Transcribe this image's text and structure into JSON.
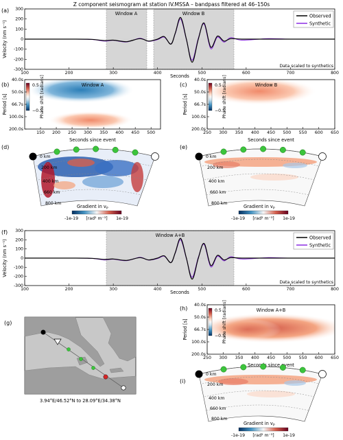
{
  "figure": {
    "top_title": "Z component seismogram at station IV.MSSA – bandpass filtered at 46–150s",
    "panel_labels": [
      "(a)",
      "(b)",
      "(c)",
      "(d)",
      "(e)",
      "(f)",
      "(g)",
      "(h)",
      "(i)"
    ],
    "legend": {
      "observed": "Observed",
      "synthetic": "Synthetic"
    },
    "scaled_note": "Data scaled to synthetics",
    "velocity_ylabel": "Velocity (nm s⁻¹)",
    "seconds_label": "Seconds",
    "seconds_since_event": "Seconds since event",
    "period_label": "Period [s]",
    "phase_shift_label": "Phase shift [radians]",
    "cbar_phase_ticks": [
      "0.5",
      "0",
      "−0.5"
    ],
    "gradient_label": "Gradient in v",
    "gradient_sub": "P",
    "gradient_units": "[rad² m⁻³]",
    "gradient_ticks": [
      "-1e-19",
      "1e-19"
    ],
    "depth_labels": [
      "0 km",
      "200 km",
      "400 km",
      "660 km",
      "800 km"
    ],
    "window_a": "Window A",
    "window_b": "Window B",
    "window_ab": "Window A+B",
    "map_caption": "3.94°E/46.52°N to 28.09°E/34.38°N",
    "colors": {
      "observed": "#000000",
      "synthetic": "#8a2be2",
      "window": "#d6d6d6",
      "station": "#3cc43c",
      "source": "#000000",
      "red": "#b2182b",
      "blue": "#2166ac"
    }
  },
  "chart_data": [
    {
      "id": "a",
      "type": "line",
      "title": "Z component seismogram at station IV.MSSA – bandpass filtered at 46–150s",
      "xlabel": "Seconds",
      "ylabel": "Velocity (nm s⁻¹)",
      "xlim": [
        100,
        800
      ],
      "ylim": [
        -300,
        300
      ],
      "xticks": [
        100,
        200,
        300,
        400,
        500,
        600,
        700,
        800
      ],
      "yticks": [
        300,
        200,
        100,
        0,
        -100,
        -200,
        -300
      ],
      "windows": [
        {
          "label": "Window A",
          "x": [
            280,
            370
          ]
        },
        {
          "label": "Window B",
          "x": [
            385,
            565
          ]
        }
      ],
      "series": [
        {
          "name": "Observed",
          "x": [
            100,
            200,
            250,
            280,
            300,
            330,
            360,
            380,
            400,
            415,
            430,
            440,
            452,
            465,
            478,
            492,
            505,
            520,
            535,
            550,
            565,
            590,
            650,
            700,
            800
          ],
          "y": [
            0,
            0,
            -2,
            -15,
            -10,
            -25,
            5,
            -20,
            0,
            25,
            -50,
            60,
            215,
            0,
            -230,
            0,
            160,
            -80,
            30,
            -20,
            5,
            0,
            0,
            0,
            0
          ]
        },
        {
          "name": "Synthetic",
          "x": [
            100,
            200,
            250,
            280,
            300,
            330,
            360,
            380,
            400,
            415,
            430,
            440,
            452,
            465,
            478,
            492,
            505,
            520,
            535,
            550,
            565,
            590,
            650,
            700,
            800
          ],
          "y": [
            0,
            0,
            -3,
            -20,
            -12,
            -28,
            8,
            -22,
            -5,
            20,
            -48,
            55,
            200,
            -5,
            -210,
            10,
            150,
            -95,
            20,
            -30,
            15,
            -10,
            5,
            0,
            0
          ]
        }
      ]
    },
    {
      "id": "b",
      "type": "heatmap",
      "title": "Window A",
      "xlabel": "Seconds since event",
      "ylabel": "Period [s]",
      "xticks": [
        150,
        200,
        250,
        300,
        350,
        400,
        450,
        500
      ],
      "yticks": [
        "40.0s",
        "50.0s",
        "66.7s",
        "100.0s",
        "200.0s"
      ],
      "colorbar": {
        "label": "Phase shift [radians]",
        "range": [
          -0.5,
          0.5
        ]
      }
    },
    {
      "id": "c",
      "type": "heatmap",
      "title": "Window B",
      "xlabel": "Seconds since event",
      "ylabel": "Period [s]",
      "xticks": [
        250,
        300,
        350,
        400,
        450,
        500,
        550,
        600,
        650
      ],
      "yticks": [
        "40.0s",
        "50.0s",
        "66.7s",
        "100.0s",
        "200.0s"
      ],
      "colorbar": {
        "label": "Phase shift [radians]",
        "range": [
          -0.5,
          0.5
        ]
      }
    },
    {
      "id": "f",
      "type": "line",
      "title": "Window A+B",
      "xlabel": "Seconds",
      "ylabel": "Velocity (nm s⁻¹)",
      "xlim": [
        100,
        800
      ],
      "ylim": [
        -300,
        300
      ],
      "xticks": [
        100,
        200,
        300,
        400,
        500,
        600,
        700,
        800
      ],
      "yticks": [
        300,
        200,
        100,
        0,
        -100,
        -200,
        -300
      ],
      "windows": [
        {
          "label": "Window A+B",
          "x": [
            280,
            565
          ]
        }
      ],
      "series": [
        {
          "name": "Observed",
          "x": [
            100,
            200,
            250,
            280,
            300,
            330,
            360,
            380,
            400,
            415,
            430,
            440,
            452,
            465,
            478,
            492,
            505,
            520,
            535,
            550,
            565,
            590,
            650,
            700,
            800
          ],
          "y": [
            0,
            0,
            -2,
            -15,
            -10,
            -25,
            5,
            -20,
            0,
            25,
            -50,
            60,
            215,
            0,
            -230,
            0,
            160,
            -80,
            30,
            -20,
            5,
            0,
            0,
            0,
            0
          ]
        },
        {
          "name": "Synthetic",
          "x": [
            100,
            200,
            250,
            280,
            300,
            330,
            360,
            380,
            400,
            415,
            430,
            440,
            452,
            465,
            478,
            492,
            505,
            520,
            535,
            550,
            565,
            590,
            650,
            700,
            800
          ],
          "y": [
            0,
            0,
            -3,
            -20,
            -12,
            -28,
            8,
            -22,
            -5,
            20,
            -48,
            55,
            200,
            -5,
            -210,
            10,
            150,
            -95,
            20,
            -30,
            15,
            -10,
            5,
            0,
            0
          ]
        }
      ]
    },
    {
      "id": "h",
      "type": "heatmap",
      "title": "Window A+B",
      "xlabel": "Seconds since event",
      "ylabel": "Period [s]",
      "xticks": [
        250,
        300,
        350,
        400,
        450,
        500,
        550,
        600,
        650
      ],
      "yticks": [
        "40.0s",
        "50.0s",
        "66.7s",
        "100.0s",
        "200.0s"
      ],
      "colorbar": {
        "label": "Phase shift [radians]",
        "range": [
          -0.5,
          0.5
        ]
      }
    }
  ]
}
